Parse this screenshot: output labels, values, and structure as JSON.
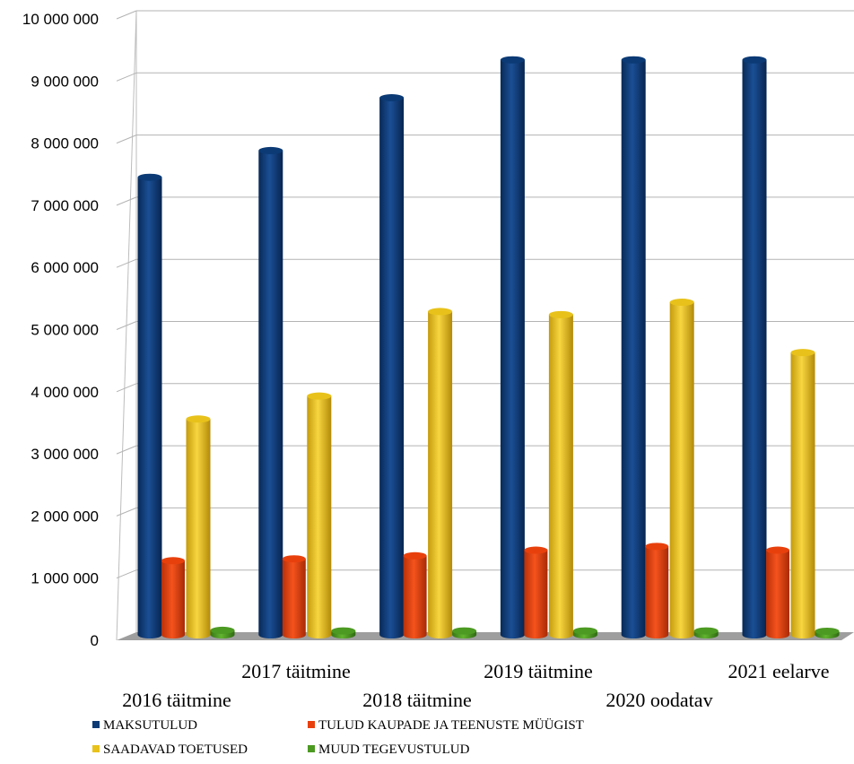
{
  "chart_data": {
    "type": "bar",
    "categories": [
      "2016 täitmine",
      "2017 täitmine",
      "2018 täitmine",
      "2019 täitmine",
      "2020 oodatav",
      "2021 eelarve"
    ],
    "series": [
      {
        "name": "MAKSUTULUD",
        "color": "#0b3a75",
        "values": [
          7320000,
          7750000,
          8600000,
          9210000,
          9210000,
          9210000
        ]
      },
      {
        "name": "TULUD KAUPADE JA TEENUSTE MÜÜGIST",
        "color": "#e8400c",
        "values": [
          1150000,
          1180000,
          1230000,
          1320000,
          1380000,
          1320000
        ]
      },
      {
        "name": "SAADAVAD TOETUSED",
        "color": "#e8c21a",
        "values": [
          3430000,
          3800000,
          5160000,
          5110000,
          5310000,
          4500000
        ]
      },
      {
        "name": "MUUD TEGEVUSTULUD",
        "color": "#4c9a22",
        "values": [
          30000,
          20000,
          20000,
          20000,
          20000,
          15000
        ]
      }
    ],
    "ylim": [
      0,
      10000000
    ],
    "yticks": [
      "0",
      "1 000 000",
      "2 000 000",
      "3 000 000",
      "4 000 000",
      "5 000 000",
      "6 000 000",
      "7 000 000",
      "8 000 000",
      "9 000 000",
      "10 000 000"
    ],
    "grid": true,
    "legend": "bottom"
  }
}
